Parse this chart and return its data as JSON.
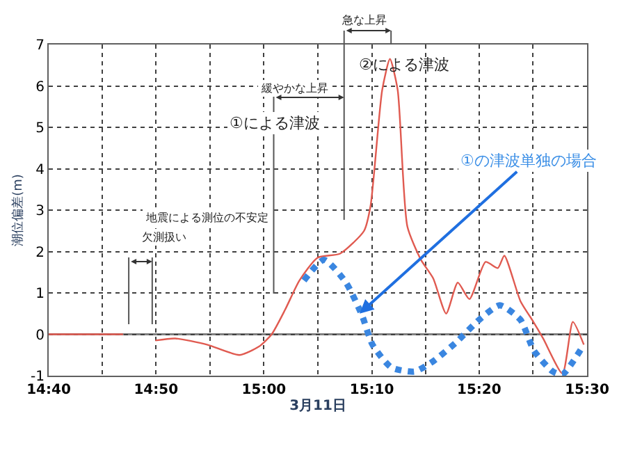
{
  "chart_data": {
    "type": "line",
    "xlabel": "3月11日",
    "ylabel": "潮位偏差(m)",
    "xlim": [
      14.667,
      15.5
    ],
    "xticks": [
      {
        "value": 14.667,
        "label": "14:40"
      },
      {
        "value": 14.833,
        "label": "14:50"
      },
      {
        "value": 15.0,
        "label": "15:00"
      },
      {
        "value": 15.167,
        "label": "15:10"
      },
      {
        "value": 15.333,
        "label": "15:20"
      },
      {
        "value": 15.5,
        "label": "15:30"
      }
    ],
    "ylim": [
      -1,
      7
    ],
    "yticks": [
      -1,
      0,
      1,
      2,
      3,
      4,
      5,
      6,
      7
    ],
    "grid": true,
    "marker": "none",
    "series": [
      {
        "color": "#e05a50",
        "line_style": "solid",
        "x": [
          14.667,
          14.782,
          14.808,
          14.832,
          14.863,
          14.912,
          14.962,
          14.992,
          15.012,
          15.033,
          15.055,
          15.083,
          15.118,
          15.155,
          15.165,
          15.183,
          15.195,
          15.207,
          15.222,
          15.243,
          15.262,
          15.282,
          15.3,
          15.318,
          15.343,
          15.362,
          15.372,
          15.397,
          15.415,
          15.432,
          15.462,
          15.478,
          15.495
        ],
        "values": [
          0,
          0,
          null,
          -0.15,
          -0.1,
          -0.25,
          -0.5,
          -0.3,
          0,
          0.6,
          1.3,
          1.85,
          1.95,
          2.5,
          3.1,
          5.9,
          6.65,
          5.9,
          2.6,
          1.8,
          1.35,
          0.5,
          1.25,
          0.85,
          1.75,
          1.6,
          1.9,
          0.8,
          0.35,
          -0.1,
          -0.95,
          0.3,
          -0.25
        ]
      },
      {
        "color": "#3a86e0",
        "line_style": "dotted",
        "x": [
          15.062,
          15.093,
          15.127,
          15.152,
          15.168,
          15.197,
          15.233,
          15.262,
          15.297,
          15.333,
          15.365,
          15.397,
          15.418,
          15.447,
          15.462,
          15.495
        ],
        "values": [
          1.3,
          1.8,
          1.25,
          0.45,
          -0.25,
          -0.8,
          -0.9,
          -0.65,
          -0.2,
          0.35,
          0.7,
          0.35,
          -0.4,
          -0.9,
          -0.97,
          -0.25
        ]
      }
    ],
    "ref_lines": [
      {
        "axis": "y",
        "value": 0,
        "color": "#808080",
        "line_style": "solid"
      }
    ],
    "annotations": [
      "①による津波",
      "緩やかな上昇",
      "②による津波",
      "急な上昇",
      "地震による測位の不安定",
      "欠測扱い",
      {
        "text": "①の津波単独の場合",
        "x": 15.148,
        "y": 0.5
      }
    ]
  }
}
